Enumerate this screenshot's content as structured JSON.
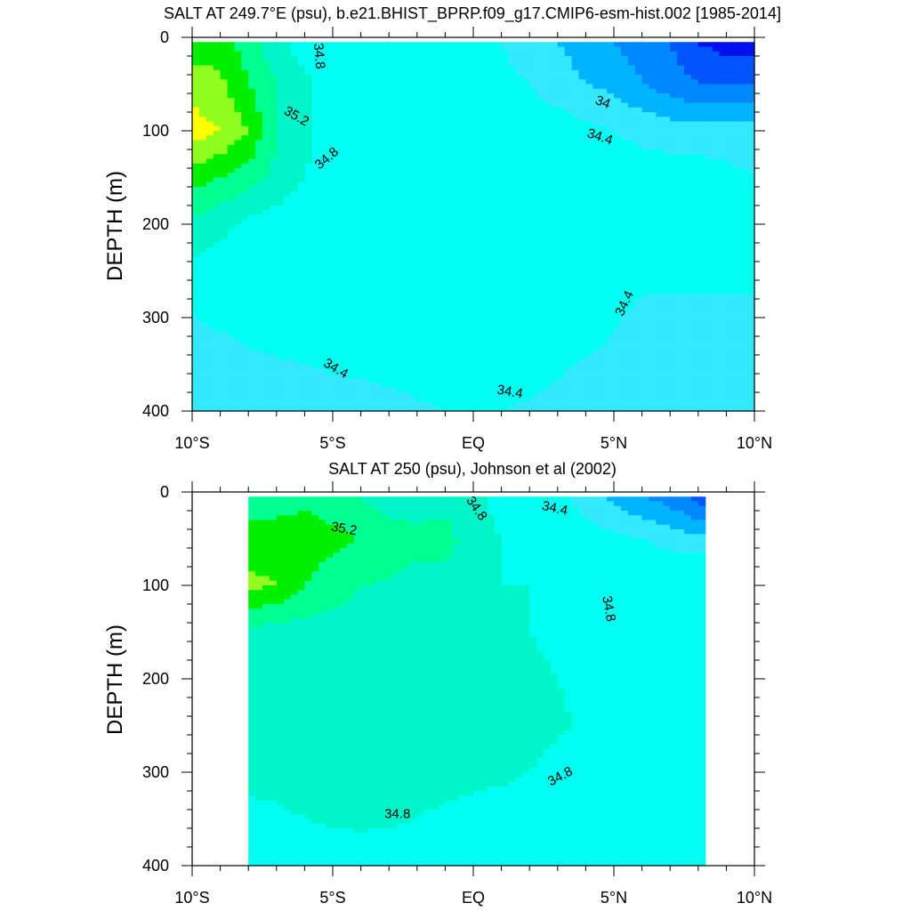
{
  "colors": {
    "levels": [
      {
        "max": 33.6,
        "hex": "#0011ee"
      },
      {
        "max": 33.8,
        "hex": "#0055ff"
      },
      {
        "max": 34.0,
        "hex": "#0088ff"
      },
      {
        "max": 34.2,
        "hex": "#00b4ff"
      },
      {
        "max": 34.4,
        "hex": "#33e8ff"
      },
      {
        "max": 34.8,
        "hex": "#00fff0"
      },
      {
        "max": 35.0,
        "hex": "#00f5c8"
      },
      {
        "max": 35.2,
        "hex": "#00ff90"
      },
      {
        "max": 35.4,
        "hex": "#00f000"
      },
      {
        "max": 35.6,
        "hex": "#90ff20"
      },
      {
        "max": 99,
        "hex": "#ffff00"
      }
    ],
    "outline": "#000000",
    "missing": "#ffffff"
  },
  "chart_data": [
    {
      "type": "heatmap",
      "title": "SALT AT 249.7°E (psu), b.e21.BHIST_BPRP.f09_g17.CMIP6-esm-hist.002 [1985-2014]",
      "ylabel": "DEPTH (m)",
      "xlabel": "",
      "xlim": [
        -10,
        10
      ],
      "ylim": [
        400,
        0
      ],
      "x_ticks": [
        {
          "value": -10,
          "label": "10°S"
        },
        {
          "value": -5,
          "label": "5°S"
        },
        {
          "value": 0,
          "label": "EQ"
        },
        {
          "value": 5,
          "label": "5°N"
        },
        {
          "value": 10,
          "label": "10°N"
        }
      ],
      "y_ticks": [
        0,
        100,
        200,
        300,
        400
      ],
      "data_extent": {
        "lat": [
          -10,
          10
        ],
        "depth": [
          5,
          400
        ]
      },
      "lat": [
        -10,
        -9,
        -8,
        -7,
        -6,
        -5,
        -4,
        -3,
        -2,
        -1,
        0,
        1,
        2,
        3,
        4,
        5,
        6,
        7,
        8,
        9,
        10
      ],
      "depth": [
        5,
        50,
        100,
        150,
        200,
        250,
        300,
        350,
        400
      ],
      "salinity": [
        [
          35.3,
          35.3,
          35.1,
          34.85,
          34.7,
          34.55,
          34.5,
          34.5,
          34.5,
          34.5,
          34.5,
          34.4,
          34.3,
          34.2,
          34.1,
          34.0,
          33.9,
          33.8,
          33.6,
          33.5,
          33.5
        ],
        [
          35.5,
          35.45,
          35.2,
          35.0,
          34.85,
          34.65,
          34.55,
          34.5,
          34.5,
          34.5,
          34.5,
          34.45,
          34.4,
          34.3,
          34.2,
          34.15,
          34.0,
          33.9,
          33.8,
          33.8,
          33.8
        ],
        [
          35.7,
          35.6,
          35.4,
          35.0,
          34.85,
          34.7,
          34.6,
          34.55,
          34.5,
          34.5,
          34.5,
          34.5,
          34.5,
          34.5,
          34.45,
          34.4,
          34.35,
          34.3,
          34.3,
          34.3,
          34.3
        ],
        [
          35.3,
          35.2,
          35.1,
          34.95,
          34.8,
          34.7,
          34.65,
          34.6,
          34.6,
          34.6,
          34.6,
          34.6,
          34.6,
          34.6,
          34.55,
          34.5,
          34.5,
          34.5,
          34.5,
          34.45,
          34.4
        ],
        [
          34.95,
          34.85,
          34.75,
          34.7,
          34.65,
          34.6,
          34.6,
          34.6,
          34.6,
          34.6,
          34.6,
          34.6,
          34.6,
          34.6,
          34.6,
          34.55,
          34.5,
          34.5,
          34.5,
          34.5,
          34.5
        ],
        [
          34.75,
          34.7,
          34.65,
          34.62,
          34.6,
          34.6,
          34.6,
          34.6,
          34.6,
          34.6,
          34.6,
          34.6,
          34.6,
          34.6,
          34.58,
          34.52,
          34.45,
          34.45,
          34.45,
          34.45,
          34.45
        ],
        [
          34.4,
          34.42,
          34.45,
          34.5,
          34.55,
          34.55,
          34.55,
          34.55,
          34.55,
          34.55,
          34.55,
          34.55,
          34.55,
          34.55,
          34.5,
          34.42,
          34.35,
          34.35,
          34.35,
          34.35,
          34.35
        ],
        [
          34.35,
          34.35,
          34.37,
          34.38,
          34.4,
          34.42,
          34.43,
          34.45,
          34.45,
          34.47,
          34.47,
          34.47,
          34.45,
          34.42,
          34.38,
          34.35,
          34.32,
          34.32,
          34.32,
          34.32,
          34.32
        ],
        [
          34.3,
          34.3,
          34.3,
          34.3,
          34.32,
          34.32,
          34.33,
          34.35,
          34.38,
          34.4,
          34.4,
          34.4,
          34.38,
          34.36,
          34.33,
          34.32,
          34.3,
          34.3,
          34.3,
          34.3,
          34.3
        ]
      ],
      "contour_labels": [
        {
          "text": "34.8",
          "lat": -5.5,
          "depth": 20,
          "angle": 85
        },
        {
          "text": "35.2",
          "lat": -6.3,
          "depth": 85,
          "angle": 30
        },
        {
          "text": "34.8",
          "lat": -5.2,
          "depth": 130,
          "angle": -40
        },
        {
          "text": "34",
          "lat": 4.6,
          "depth": 70,
          "angle": 20
        },
        {
          "text": "34.4",
          "lat": 4.5,
          "depth": 107,
          "angle": 18
        },
        {
          "text": "34.4",
          "lat": -4.9,
          "depth": 355,
          "angle": 30
        },
        {
          "text": "34.4",
          "lat": 1.3,
          "depth": 380,
          "angle": 10
        },
        {
          "text": "34.4",
          "lat": 5.4,
          "depth": 285,
          "angle": -65
        }
      ]
    },
    {
      "type": "heatmap",
      "title": "SALT AT 250 (psu), Johnson et al (2002)",
      "ylabel": "DEPTH (m)",
      "xlabel": "",
      "xlim": [
        -10,
        10
      ],
      "ylim": [
        400,
        0
      ],
      "x_ticks": [
        {
          "value": -10,
          "label": "10°S"
        },
        {
          "value": -5,
          "label": "5°S"
        },
        {
          "value": 0,
          "label": "EQ"
        },
        {
          "value": 5,
          "label": "5°N"
        },
        {
          "value": 10,
          "label": "10°N"
        }
      ],
      "y_ticks": [
        0,
        100,
        200,
        300,
        400
      ],
      "data_extent": {
        "lat": [
          -8,
          8.25
        ],
        "depth": [
          5,
          400
        ]
      },
      "lat": [
        -8,
        -7,
        -6,
        -5,
        -4,
        -3,
        -2,
        -1,
        0,
        1,
        2,
        3,
        4,
        5,
        6,
        7,
        8,
        8.25
      ],
      "depth": [
        5,
        50,
        100,
        150,
        200,
        250,
        300,
        350,
        400
      ],
      "salinity": [
        [
          35.05,
          35.1,
          35.15,
          35.1,
          35.0,
          34.9,
          34.9,
          34.9,
          34.85,
          34.75,
          34.6,
          34.45,
          34.3,
          34.15,
          34.0,
          33.9,
          33.7,
          33.7
        ],
        [
          35.3,
          35.3,
          35.3,
          35.25,
          35.2,
          35.1,
          35.05,
          35.1,
          34.85,
          34.8,
          34.7,
          34.6,
          34.5,
          34.45,
          34.4,
          34.3,
          34.25,
          34.25
        ],
        [
          35.45,
          35.4,
          35.2,
          35.1,
          35.0,
          34.98,
          34.95,
          34.9,
          34.85,
          34.8,
          34.8,
          34.78,
          34.75,
          34.73,
          34.7,
          34.7,
          34.75,
          34.75
        ],
        [
          34.95,
          34.9,
          34.9,
          34.9,
          34.9,
          34.9,
          34.88,
          34.85,
          34.85,
          34.82,
          34.8,
          34.78,
          34.75,
          34.73,
          34.7,
          34.7,
          34.7,
          34.7
        ],
        [
          34.9,
          34.9,
          34.9,
          34.9,
          34.9,
          34.9,
          34.88,
          34.86,
          34.85,
          34.83,
          34.82,
          34.8,
          34.78,
          34.73,
          34.7,
          34.7,
          34.7,
          34.7
        ],
        [
          34.88,
          34.88,
          34.88,
          34.88,
          34.88,
          34.87,
          34.86,
          34.85,
          34.84,
          34.83,
          34.82,
          34.81,
          34.79,
          34.75,
          34.72,
          34.7,
          34.7,
          34.7
        ],
        [
          34.85,
          34.86,
          34.87,
          34.87,
          34.86,
          34.85,
          34.84,
          34.84,
          34.83,
          34.82,
          34.8,
          34.78,
          34.75,
          34.73,
          34.7,
          34.7,
          34.7,
          34.7
        ],
        [
          34.75,
          34.77,
          34.8,
          34.82,
          34.83,
          34.82,
          34.8,
          34.78,
          34.76,
          34.75,
          34.74,
          34.73,
          34.72,
          34.71,
          34.7,
          34.7,
          34.7,
          34.7
        ],
        [
          34.7,
          34.7,
          34.72,
          34.72,
          34.72,
          34.72,
          34.72,
          34.72,
          34.72,
          34.72,
          34.71,
          34.71,
          34.7,
          34.7,
          34.7,
          34.7,
          34.7,
          34.7
        ]
      ],
      "contour_labels": [
        {
          "text": "35.2",
          "lat": -4.6,
          "depth": 40,
          "angle": 10
        },
        {
          "text": "34.8",
          "lat": 0.1,
          "depth": 18,
          "angle": 55
        },
        {
          "text": "34.4",
          "lat": 2.9,
          "depth": 18,
          "angle": 12
        },
        {
          "text": "34.8",
          "lat": 4.8,
          "depth": 125,
          "angle": 80
        },
        {
          "text": "34.8",
          "lat": 3.1,
          "depth": 305,
          "angle": -28
        },
        {
          "text": "34.8",
          "lat": -2.7,
          "depth": 345,
          "angle": 0
        }
      ]
    }
  ]
}
